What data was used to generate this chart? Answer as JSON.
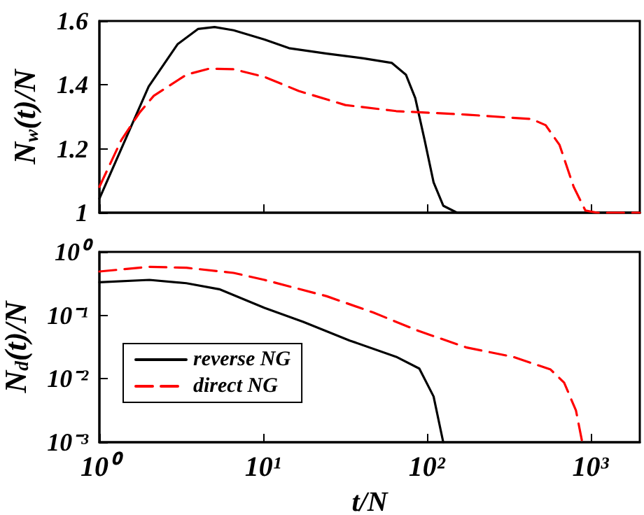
{
  "chart_data": [
    {
      "type": "line",
      "ylabel": "N$_{w}$(t)/N",
      "xlim": [
        1,
        2000
      ],
      "log": "x",
      "ylim": [
        1,
        1.6
      ],
      "yticks": [
        1,
        1.2,
        1.4,
        1.6
      ],
      "tick_labels": "y",
      "marker": "none",
      "xticks": [
        {
          "value": 1,
          "label": null
        },
        {
          "value": 10,
          "label": null
        },
        {
          "value": 100,
          "label": null
        },
        {
          "value": 1000,
          "label": null
        }
      ],
      "series": [
        {
          "color": "#000000",
          "line_style": "solid",
          "x": [
            1,
            2,
            3,
            4,
            5.05,
            6.6,
            10.2,
            14.4,
            24.5,
            41,
            61,
            74.5,
            85,
            97,
            110,
            126,
            153,
            2000
          ],
          "values": [
            1.044,
            1.395,
            1.527,
            1.575,
            1.581,
            1.571,
            1.542,
            1.515,
            1.498,
            1.483,
            1.469,
            1.432,
            1.359,
            1.227,
            1.095,
            1.022,
            1.0,
            1.0
          ]
        },
        {
          "color": "#ff0000",
          "line_style": "dashed",
          "x": [
            1,
            1.36,
            1.77,
            2.15,
            3.4,
            4.7,
            6.6,
            10.2,
            16.5,
            31.8,
            65,
            175,
            437,
            532,
            647,
            789,
            930,
            1100,
            2000
          ],
          "values": [
            1.081,
            1.227,
            1.315,
            1.366,
            1.432,
            1.451,
            1.449,
            1.425,
            1.381,
            1.337,
            1.318,
            1.307,
            1.293,
            1.274,
            1.212,
            1.081,
            1.007,
            1.0,
            1.0
          ]
        }
      ]
    },
    {
      "type": "line",
      "xlabel": "t/N",
      "ylabel": "N$_{d}$(t)/N",
      "xlim": [
        1,
        2000
      ],
      "log": "xy",
      "ylim": [
        0.001,
        1
      ],
      "legend": "left",
      "marker": "none",
      "xticks": [
        {
          "value": 1,
          "label": "10⁰"
        },
        {
          "value": 10,
          "label": "10¹"
        },
        {
          "value": 100,
          "label": "10²"
        },
        {
          "value": 1000,
          "label": "10³"
        }
      ],
      "yticks": [
        {
          "value": 0.001,
          "label": "10⁻³"
        },
        {
          "value": 0.01,
          "label": "10⁻²"
        },
        {
          "value": 0.1,
          "label": "10⁻¹"
        },
        {
          "value": 1,
          "label": "10⁰"
        }
      ],
      "series": [
        {
          "name": "reverse NG",
          "color": "#000000",
          "line_style": "solid",
          "x": [
            1,
            2.02,
            3.4,
            5.4,
            10.2,
            17.6,
            33.8,
            65,
            90,
            110,
            126
          ],
          "values": [
            0.333,
            0.362,
            0.321,
            0.258,
            0.131,
            0.0789,
            0.0401,
            0.0222,
            0.0145,
            0.00526,
            0.001
          ]
        },
        {
          "name": "direct NG",
          "color": "#ff0000",
          "line_style": "dashed",
          "x": [
            1,
            2.02,
            3.4,
            6.6,
            10.2,
            24.5,
            47,
            90,
            175,
            336,
            570,
            690,
            815,
            890
          ],
          "values": [
            0.491,
            0.582,
            0.562,
            0.467,
            0.362,
            0.2,
            0.111,
            0.0562,
            0.0311,
            0.0222,
            0.014,
            0.0087,
            0.00316,
            0.001
          ]
        }
      ]
    }
  ]
}
